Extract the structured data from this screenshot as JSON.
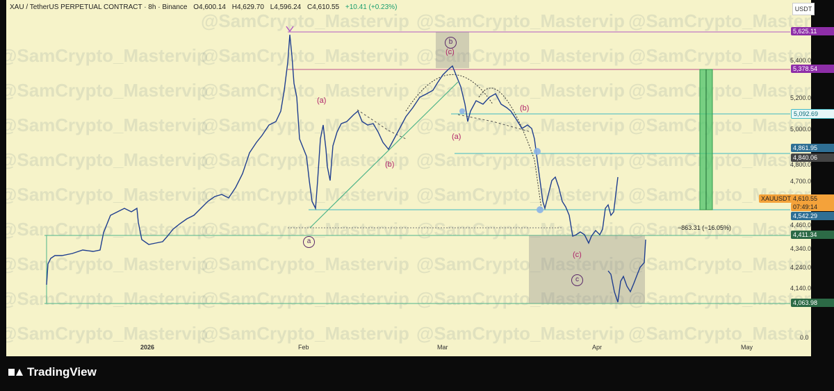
{
  "header": {
    "symbol": "XAU / TetherUS PERPETUAL CONTRACT · 8h · Binance",
    "open": "O4,600.14",
    "high": "H4,629.70",
    "low": "L4,596.24",
    "close": "C4,610.55",
    "change": "+10.41 (+0.23%)"
  },
  "currency_button": "USDT",
  "price_labels": [
    {
      "text": "5,625.11",
      "bg": "#8e2ea8",
      "fg": "#ffffff"
    },
    {
      "text": "5,378.54",
      "bg": "#8e2ea8",
      "fg": "#ffffff"
    },
    {
      "text": "5,092.69",
      "bg": "#e8f7f8",
      "fg": "#0c6c78"
    },
    {
      "text": "4,861.95",
      "bg": "#2f6f94",
      "fg": "#ffffff"
    },
    {
      "text": "4,840.06",
      "bg": "#444444",
      "fg": "#ffffff"
    },
    {
      "text": "4,542.29",
      "bg": "#2f6f94",
      "fg": "#ffffff"
    },
    {
      "text": "4,411.34",
      "bg": "#2c6a46",
      "fg": "#ffffff"
    },
    {
      "text": "4,063.98",
      "bg": "#2c6a46",
      "fg": "#ffffff"
    }
  ],
  "current_price": {
    "symbol": "XAUUSDT.P",
    "price": "4,610.55",
    "timer": "07:49:14"
  },
  "axis_ticks": [
    "5,400.00",
    "5,200.00",
    "5,000.00",
    "4,800.00",
    "4,700.00",
    "4,460.00",
    "4,340.00",
    "4,240.00",
    "4,140.00",
    "0.0"
  ],
  "time_ticks": [
    "2026",
    "Feb",
    "Mar",
    "Apr",
    "May"
  ],
  "measure_label": "−863.31 (−16.05%)",
  "wave_labels": [
    "(a)",
    "(b)",
    "(c)",
    "(a)",
    "(b)",
    "(c)"
  ],
  "circled_labels": [
    "a",
    "b",
    "c"
  ],
  "watermark": "@SamCrypto_Mastervip",
  "branding": "TradingView",
  "colors": {
    "chart_bg": "#f6f3c9",
    "candle": "#1f3e8f",
    "wave_label": "#b0246a"
  }
}
